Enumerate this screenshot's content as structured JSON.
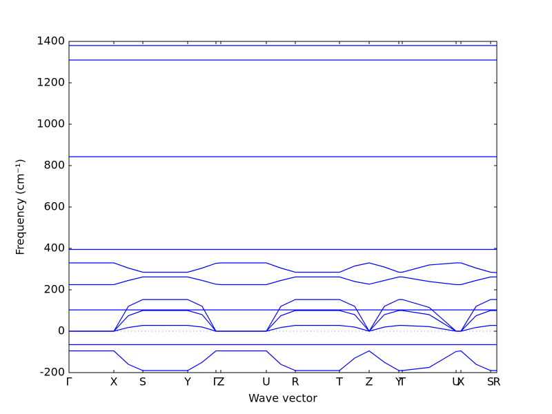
{
  "chart_data": {
    "type": "line",
    "xlabel": "Wave vector",
    "ylabel": "Frequency (cm⁻¹)",
    "xlim": [
      0,
      620
    ],
    "ylim": [
      -200,
      1400
    ],
    "yticks": [
      -200,
      0,
      200,
      400,
      600,
      800,
      1000,
      1200,
      1400
    ],
    "xticks": [
      {
        "value": 0,
        "label": "Γ"
      },
      {
        "value": 65,
        "label": "X"
      },
      {
        "value": 107,
        "label": "S"
      },
      {
        "value": 172,
        "label": "Y"
      },
      {
        "value": 213,
        "label": "Γ"
      },
      {
        "value": 220,
        "label": "Z"
      },
      {
        "value": 286,
        "label": "U"
      },
      {
        "value": 328,
        "label": "R"
      },
      {
        "value": 392,
        "label": "T"
      },
      {
        "value": 435,
        "label": "Z"
      },
      {
        "value": 478,
        "label": "Y"
      },
      {
        "value": 483,
        "label": "T"
      },
      {
        "value": 561,
        "label": "U"
      },
      {
        "value": 568,
        "label": "X"
      },
      {
        "value": 611,
        "label": "S"
      },
      {
        "value": 620,
        "label": "R"
      }
    ],
    "hline": 0,
    "x": [
      0,
      32,
      65,
      86,
      107,
      140,
      172,
      193,
      213,
      220,
      253,
      286,
      307,
      328,
      360,
      392,
      414,
      435,
      457,
      478,
      483,
      522,
      561,
      568,
      590,
      611,
      620
    ],
    "series": [
      {
        "color": "#0000ff",
        "values": [
          1380,
          1380,
          1380,
          1380,
          1380,
          1380,
          1380,
          1380,
          1380,
          1380,
          1380,
          1380,
          1380,
          1380,
          1380,
          1380,
          1380,
          1380,
          1380,
          1380,
          1380,
          1380,
          1380,
          1380,
          1380,
          1380,
          1380
        ]
      },
      {
        "color": "#0000ff",
        "values": [
          1310,
          1310,
          1310,
          1310,
          1310,
          1310,
          1310,
          1310,
          1310,
          1310,
          1310,
          1310,
          1310,
          1310,
          1310,
          1310,
          1310,
          1310,
          1310,
          1310,
          1310,
          1310,
          1310,
          1310,
          1310,
          1310,
          1310
        ]
      },
      {
        "color": "#0000ff",
        "values": [
          843,
          843,
          843,
          843,
          843,
          843,
          843,
          843,
          843,
          843,
          843,
          843,
          843,
          843,
          843,
          843,
          843,
          843,
          843,
          843,
          843,
          843,
          843,
          843,
          843,
          843,
          843
        ]
      },
      {
        "color": "#0000ff",
        "values": [
          395,
          395,
          395,
          395,
          395,
          395,
          395,
          395,
          395,
          395,
          395,
          395,
          395,
          395,
          395,
          395,
          395,
          395,
          395,
          395,
          395,
          395,
          395,
          395,
          395,
          395,
          395
        ]
      },
      {
        "color": "#0000ff",
        "values": [
          330,
          330,
          330,
          305,
          285,
          285,
          285,
          305,
          328,
          330,
          330,
          330,
          305,
          285,
          285,
          285,
          315,
          330,
          310,
          285,
          285,
          320,
          330,
          330,
          305,
          285,
          283
        ]
      },
      {
        "color": "#0000ff",
        "values": [
          225,
          225,
          225,
          245,
          262,
          262,
          262,
          245,
          227,
          225,
          225,
          225,
          245,
          262,
          262,
          262,
          240,
          227,
          245,
          262,
          262,
          240,
          225,
          225,
          245,
          262,
          262
        ]
      },
      {
        "color": "#0000ff",
        "values": [
          0,
          0,
          0,
          120,
          153,
          153,
          153,
          120,
          0,
          0,
          0,
          0,
          120,
          153,
          153,
          153,
          120,
          0,
          120,
          153,
          153,
          115,
          0,
          0,
          120,
          153,
          153
        ]
      },
      {
        "color": "#0000ff",
        "values": [
          103,
          103,
          103,
          103,
          103,
          103,
          103,
          103,
          103,
          103,
          103,
          103,
          103,
          103,
          103,
          103,
          103,
          103,
          103,
          103,
          103,
          103,
          103,
          103,
          103,
          103,
          103
        ]
      },
      {
        "color": "#0000ff",
        "values": [
          0,
          0,
          0,
          75,
          100,
          100,
          100,
          80,
          0,
          0,
          0,
          0,
          75,
          100,
          100,
          100,
          80,
          0,
          80,
          100,
          100,
          80,
          0,
          0,
          75,
          100,
          100
        ]
      },
      {
        "color": "#0000ff",
        "values": [
          0,
          0,
          0,
          18,
          28,
          28,
          28,
          20,
          0,
          0,
          0,
          0,
          18,
          28,
          28,
          28,
          20,
          0,
          20,
          28,
          28,
          22,
          0,
          0,
          18,
          28,
          28
        ]
      },
      {
        "color": "#0000ff",
        "values": [
          -65,
          -65,
          -65,
          -65,
          -65,
          -65,
          -65,
          -65,
          -65,
          -65,
          -65,
          -65,
          -65,
          -65,
          -65,
          -65,
          -65,
          -65,
          -65,
          -65,
          -65,
          -65,
          -65,
          -65,
          -65,
          -65,
          -65
        ]
      },
      {
        "color": "#0000ff",
        "values": [
          -95,
          -95,
          -95,
          -160,
          -190,
          -190,
          -190,
          -150,
          -95,
          -95,
          -95,
          -95,
          -160,
          -190,
          -190,
          -190,
          -130,
          -95,
          -150,
          -190,
          -190,
          -175,
          -98,
          -95,
          -160,
          -190,
          -190
        ]
      }
    ]
  }
}
